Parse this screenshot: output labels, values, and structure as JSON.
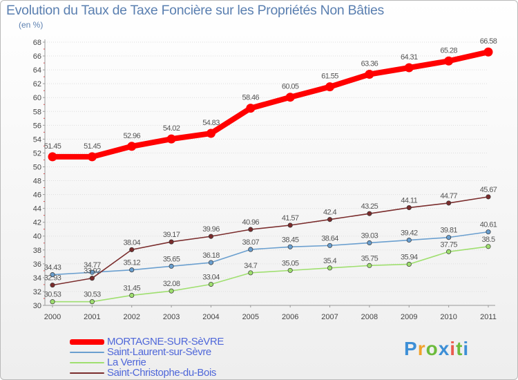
{
  "chart_data": {
    "type": "line",
    "title": "Evolution du Taux de Taxe Foncière sur les Propriétés Non Bâties",
    "ylabel": "(en %)",
    "xlabel": "",
    "ylim": [
      30,
      68
    ],
    "yticks": [
      "30",
      "32",
      "34",
      "36",
      "38",
      "40",
      "42",
      "44",
      "46",
      "48",
      "50",
      "52",
      "54",
      "56",
      "58",
      "60",
      "62",
      "64",
      "66",
      "68"
    ],
    "x": [
      "2000",
      "2001",
      "2002",
      "2003",
      "2004",
      "2005",
      "2006",
      "2007",
      "2008",
      "2009",
      "2010",
      "2011"
    ],
    "series": [
      {
        "name": "MORTAGNE-SUR-SèVRE",
        "color": "#ff0000",
        "values": [
          51.45,
          51.45,
          52.96,
          54.02,
          54.83,
          58.46,
          60.05,
          61.55,
          63.36,
          64.31,
          65.28,
          66.58
        ],
        "labels": [
          "51.45",
          "51.45",
          "52.96",
          "54.02",
          "54.83",
          "58.46",
          "60.05",
          "61.55",
          "63.36",
          "64.31",
          "65.28",
          "66.58"
        ]
      },
      {
        "name": "Saint-Laurent-sur-Sèvre",
        "color": "#6a9fcf",
        "values": [
          34.43,
          34.77,
          35.12,
          35.65,
          36.18,
          38.07,
          38.45,
          38.64,
          39.03,
          39.42,
          39.81,
          40.61
        ],
        "labels": [
          "34.43",
          "34.77",
          "35.12",
          "35.65",
          "36.18",
          "38.07",
          "38.45",
          "38.64",
          "39.03",
          "39.42",
          "39.81",
          "40.61"
        ]
      },
      {
        "name": "La Verrie",
        "color": "#9fdf6f",
        "values": [
          30.53,
          30.53,
          31.45,
          32.08,
          33.04,
          34.7,
          35.05,
          35.4,
          35.75,
          35.94,
          37.75,
          38.5
        ],
        "labels": [
          "30.53",
          "30.53",
          "31.45",
          "32.08",
          "33.04",
          "34.7",
          "35.05",
          "35.4",
          "35.75",
          "35.94",
          "37.75",
          "38.5"
        ]
      },
      {
        "name": "Saint-Christophe-du-Bois",
        "color": "#7a2c2c",
        "values": [
          32.93,
          33.92,
          38.04,
          39.17,
          39.96,
          40.96,
          41.57,
          42.4,
          43.25,
          44.11,
          44.77,
          45.67
        ],
        "labels": [
          "32.93",
          "33.92",
          "38.04",
          "39.17",
          "39.96",
          "40.96",
          "41.57",
          "42.4",
          "43.25",
          "44.11",
          "44.77",
          "45.67"
        ]
      }
    ],
    "legend_position": "bottom-left"
  },
  "logo": {
    "letters": [
      "P",
      "r",
      "o",
      "x",
      "i",
      "t",
      "i"
    ]
  }
}
